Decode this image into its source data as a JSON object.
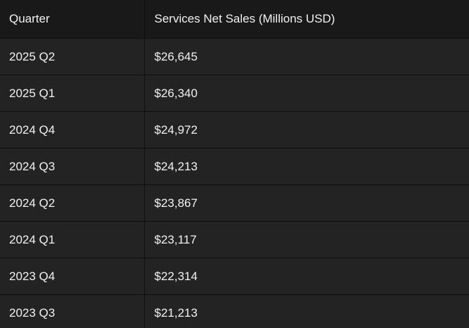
{
  "colors": {
    "page_background": "#1b1b1b",
    "header_background": "#191919",
    "row_background": "#232323",
    "divider": "#0f0f0f",
    "text": "#f2f2f2"
  },
  "table": {
    "headers": [
      "Quarter",
      "Services Net Sales (Millions USD)"
    ],
    "rows": [
      [
        "2025 Q2",
        "$26,645"
      ],
      [
        "2025 Q1",
        "$26,340"
      ],
      [
        "2024 Q4",
        "$24,972"
      ],
      [
        "2024 Q3",
        "$24,213"
      ],
      [
        "2024 Q2",
        "$23,867"
      ],
      [
        "2024 Q1",
        "$23,117"
      ],
      [
        "2023 Q4",
        "$22,314"
      ],
      [
        "2023 Q3",
        "$21,213"
      ]
    ]
  },
  "chart_data": {
    "type": "table",
    "title": "Services Net Sales (Millions USD)",
    "columns": [
      "Quarter",
      "Services Net Sales (Millions USD)"
    ],
    "categories": [
      "2025 Q2",
      "2025 Q1",
      "2024 Q4",
      "2024 Q3",
      "2024 Q2",
      "2024 Q1",
      "2023 Q4",
      "2023 Q3"
    ],
    "values": [
      26645,
      26340,
      24972,
      24213,
      23867,
      23117,
      22314,
      21213
    ],
    "units": "Millions USD"
  }
}
